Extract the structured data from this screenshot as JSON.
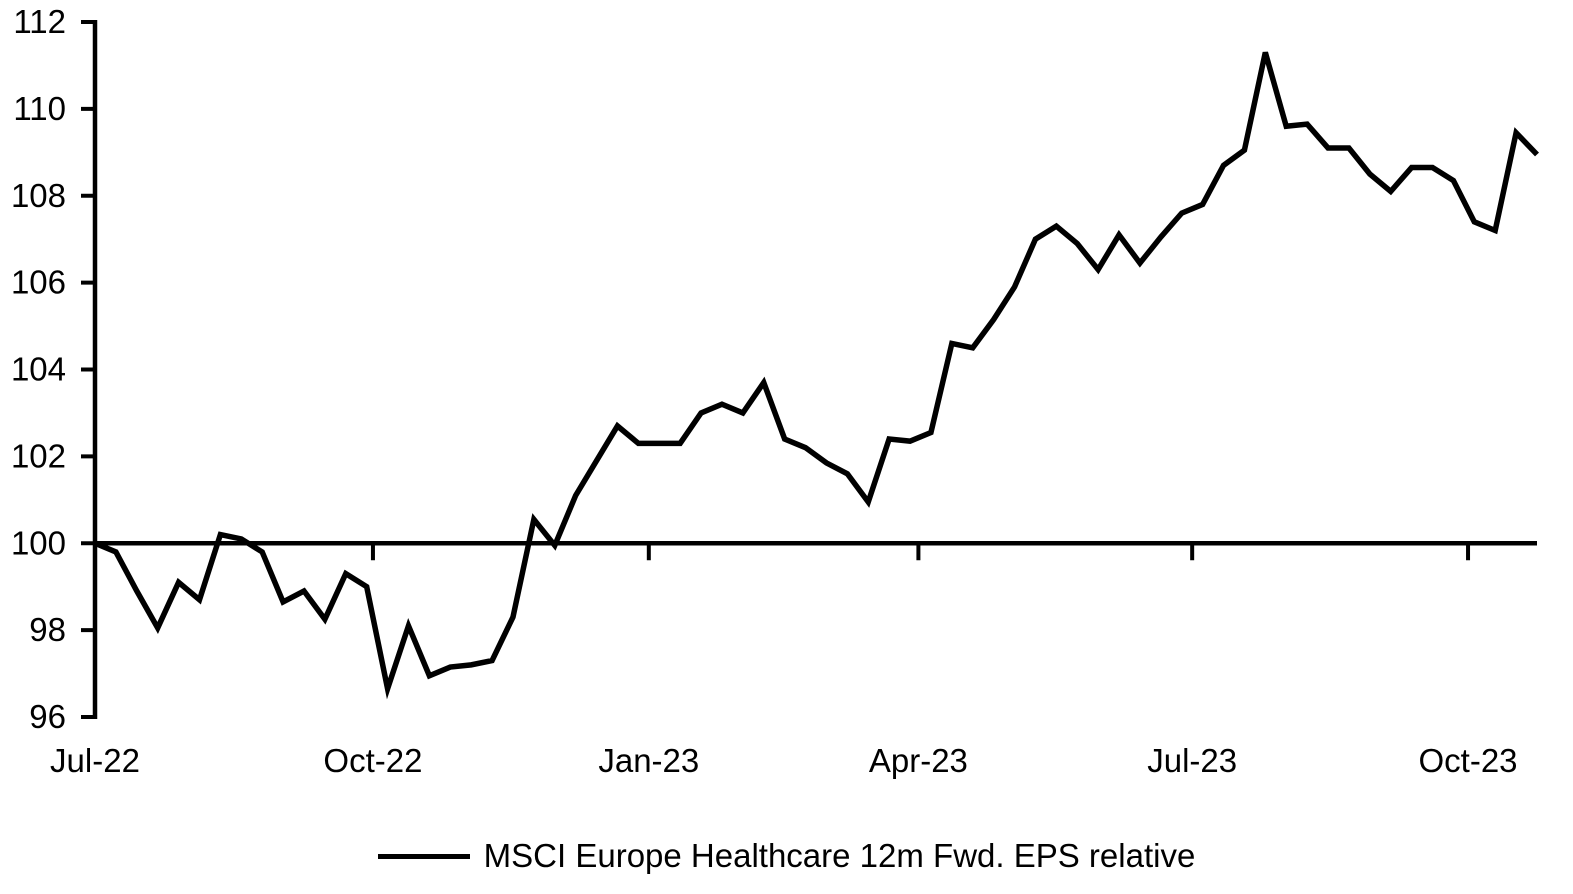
{
  "colors": {
    "line": "#000000",
    "axis": "#000000",
    "text": "#000000",
    "background": "#ffffff"
  },
  "legend": {
    "label": "MSCI Europe Healthcare 12m Fwd. EPS relative",
    "swatch_color": "#000000"
  },
  "chart_data": {
    "type": "line",
    "title": "",
    "xlabel": "",
    "ylabel": "",
    "grid": false,
    "legend_position": "bottom-center",
    "ylim": [
      96,
      112
    ],
    "y_ticks": [
      96,
      98,
      100,
      102,
      104,
      106,
      108,
      110,
      112
    ],
    "baseline": 100,
    "axis_crosses_at": 100,
    "x_unit": "weekly samples, Jul 2022 to late Oct 2023",
    "x_ticks": [
      {
        "label": "Jul-22",
        "pos": 0
      },
      {
        "label": "Oct-22",
        "pos": 13.3
      },
      {
        "label": "Jan-23",
        "pos": 26.5
      },
      {
        "label": "Apr-23",
        "pos": 39.4
      },
      {
        "label": "Jul-23",
        "pos": 52.5
      },
      {
        "label": "Oct-23",
        "pos": 65.7
      }
    ],
    "series": [
      {
        "name": "MSCI Europe Healthcare 12m Fwd. EPS relative",
        "color": "#000000",
        "values": [
          100,
          99.8,
          98.9,
          98.05,
          99.1,
          98.7,
          100.2,
          100.1,
          99.8,
          98.65,
          98.9,
          98.25,
          99.3,
          99,
          96.65,
          98.1,
          96.95,
          97.15,
          97.2,
          97.3,
          98.3,
          100.55,
          99.95,
          101.1,
          101.9,
          102.7,
          102.3,
          102.3,
          102.3,
          103,
          103.2,
          103,
          103.7,
          102.4,
          102.2,
          101.85,
          101.6,
          100.95,
          102.4,
          102.35,
          102.55,
          104.6,
          104.5,
          105.15,
          105.9,
          107,
          107.3,
          106.9,
          106.3,
          107.1,
          106.45,
          107.05,
          107.6,
          107.8,
          108.7,
          109.05,
          111.3,
          109.6,
          109.65,
          109.1,
          109.1,
          108.5,
          108.1,
          108.65,
          108.65,
          108.35,
          107.4,
          107.2,
          109.45,
          108.95
        ]
      }
    ]
  }
}
